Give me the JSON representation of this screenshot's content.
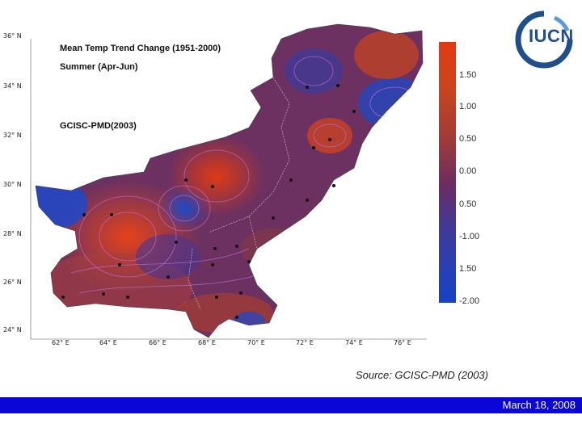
{
  "map": {
    "title": "Mean Temp Trend Change (1951-2000)",
    "subtitle": "Summer (Apr-Jun)",
    "credit": "GCISC-PMD(2003)",
    "latitudes": [
      "36° N",
      "34° N",
      "32° N",
      "30° N",
      "28° N",
      "26° N",
      "24° N"
    ],
    "longitudes": [
      "62° E",
      "64° E",
      "66° E",
      "68° E",
      "70° E",
      "72° E",
      "74° E",
      "76° E"
    ]
  },
  "legend": {
    "labels": [
      "1.50",
      "1.00",
      "0.50",
      "0.00",
      "0.50",
      "-1.00",
      "1.50",
      "-2.00"
    ]
  },
  "source": "Source: GCISC-PMD (2003)",
  "footer": {
    "date": "March 18, 2008"
  },
  "logo": {
    "text": "IUCN"
  },
  "colors": {
    "footer_bar": "#0a06d8",
    "hot": "#d9451a",
    "cool": "#1d45c4",
    "neutral": "#6b2f5f"
  }
}
